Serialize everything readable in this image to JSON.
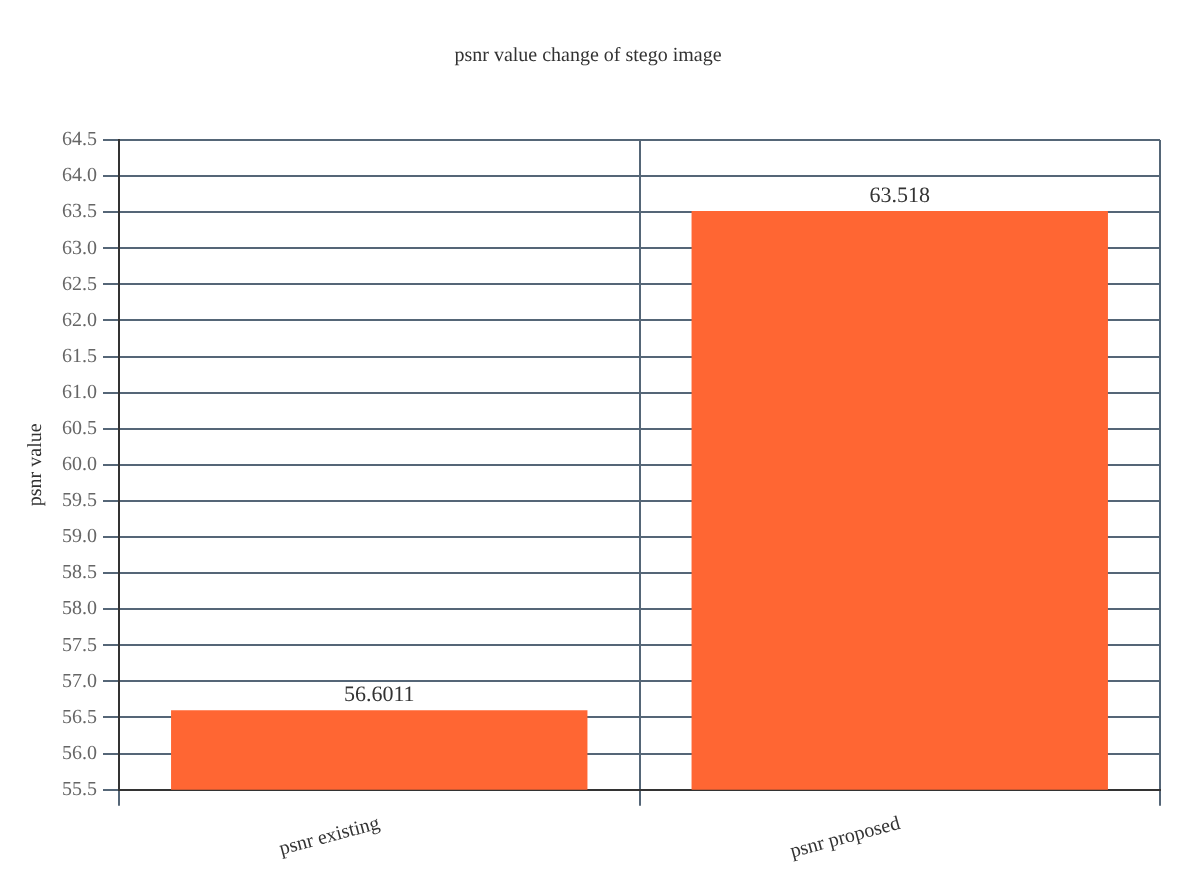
{
  "chart_data": {
    "type": "bar",
    "title": "psnr value change of stego image",
    "ylabel": "psnr value",
    "categories": [
      "psnr existing",
      "psnr proposed"
    ],
    "values": [
      56.6011,
      63.518
    ],
    "color": "#ff6633",
    "data_labels": true,
    "ylim": [
      55.5,
      64.5
    ],
    "yticks": [
      55.5,
      {
        "value": 56,
        "label": "56.0"
      },
      56.5,
      {
        "value": 57,
        "label": "57.0"
      },
      57.5,
      {
        "value": 58,
        "label": "58.0"
      },
      58.5,
      {
        "value": 59,
        "label": "59.0"
      },
      59.5,
      {
        "value": 60,
        "label": "60.0"
      },
      60.5,
      {
        "value": 61,
        "label": "61.0"
      },
      61.5,
      {
        "value": 62,
        "label": "62.0"
      },
      62.5,
      {
        "value": 63,
        "label": "63.0"
      },
      63.5,
      {
        "value": 64,
        "label": "64.0"
      },
      64.5
    ],
    "grid": true,
    "legend": false
  }
}
